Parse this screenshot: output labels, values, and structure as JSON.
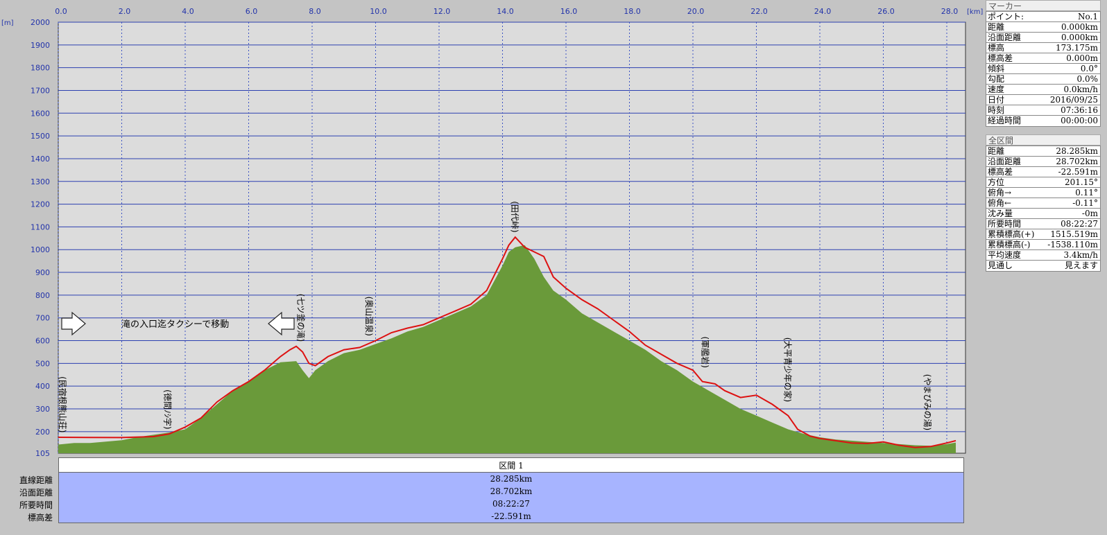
{
  "chart_data": {
    "type": "area",
    "y_unit": "[m]",
    "x_unit": "[km]",
    "xlim": [
      0,
      28.285
    ],
    "ylim": [
      105,
      2000
    ],
    "x_ticks": [
      "0.0",
      "2.0",
      "4.0",
      "6.0",
      "8.0",
      "10.0",
      "12.0",
      "14.0",
      "16.0",
      "18.0",
      "20.0",
      "22.0",
      "24.0",
      "26.0",
      "28.0"
    ],
    "y_ticks": [
      "2000",
      "1900",
      "1800",
      "1700",
      "1600",
      "1500",
      "1400",
      "1300",
      "1200",
      "1100",
      "1000",
      "900",
      "800",
      "700",
      "600",
      "500",
      "400",
      "300",
      "200",
      "105"
    ],
    "y_grid_values": [
      2000,
      1900,
      1800,
      1700,
      1600,
      1500,
      1400,
      1300,
      1200,
      1100,
      1000,
      900,
      800,
      700,
      600,
      500,
      400,
      300,
      200
    ],
    "grid": true,
    "series": [
      {
        "color": "#6a9a3a",
        "points": [
          [
            0,
            143
          ],
          [
            0.5,
            150
          ],
          [
            1,
            150
          ],
          [
            1.5,
            156
          ],
          [
            2,
            162
          ],
          [
            2.5,
            176
          ],
          [
            3,
            186
          ],
          [
            3.5,
            196
          ],
          [
            4,
            210
          ],
          [
            4.5,
            260
          ],
          [
            5,
            320
          ],
          [
            5.5,
            380
          ],
          [
            6,
            420
          ],
          [
            6.5,
            470
          ],
          [
            7,
            505
          ],
          [
            7.5,
            510
          ],
          [
            7.7,
            470
          ],
          [
            7.9,
            435
          ],
          [
            8.1,
            470
          ],
          [
            8.5,
            510
          ],
          [
            9,
            545
          ],
          [
            9.5,
            560
          ],
          [
            10,
            585
          ],
          [
            10.5,
            610
          ],
          [
            11,
            640
          ],
          [
            11.5,
            660
          ],
          [
            12,
            690
          ],
          [
            12.5,
            720
          ],
          [
            13,
            750
          ],
          [
            13.5,
            800
          ],
          [
            14,
            930
          ],
          [
            14.2,
            990
          ],
          [
            14.4,
            1010
          ],
          [
            14.7,
            1020
          ],
          [
            15,
            960
          ],
          [
            15.3,
            880
          ],
          [
            15.6,
            820
          ],
          [
            16,
            780
          ],
          [
            16.5,
            720
          ],
          [
            17,
            680
          ],
          [
            17.5,
            640
          ],
          [
            18,
            600
          ],
          [
            18.5,
            560
          ],
          [
            19,
            510
          ],
          [
            19.5,
            470
          ],
          [
            20,
            420
          ],
          [
            20.5,
            380
          ],
          [
            21,
            340
          ],
          [
            21.5,
            300
          ],
          [
            22,
            270
          ],
          [
            22.5,
            240
          ],
          [
            23,
            210
          ],
          [
            23.5,
            190
          ],
          [
            24,
            175
          ],
          [
            24.5,
            165
          ],
          [
            25,
            160
          ],
          [
            25.5,
            155
          ],
          [
            26,
            150
          ],
          [
            26.5,
            145
          ],
          [
            27,
            140
          ],
          [
            27.5,
            138
          ],
          [
            28,
            145
          ],
          [
            28.285,
            152
          ]
        ]
      },
      {
        "color": "#dd1111",
        "points": [
          [
            0,
            175
          ],
          [
            2,
            174
          ],
          [
            3,
            178
          ],
          [
            3.5,
            190
          ],
          [
            4,
            220
          ],
          [
            4.5,
            260
          ],
          [
            5,
            330
          ],
          [
            5.5,
            380
          ],
          [
            6,
            420
          ],
          [
            6.5,
            470
          ],
          [
            7,
            530
          ],
          [
            7.3,
            560
          ],
          [
            7.5,
            575
          ],
          [
            7.7,
            550
          ],
          [
            7.9,
            500
          ],
          [
            8.1,
            490
          ],
          [
            8.5,
            530
          ],
          [
            9,
            560
          ],
          [
            9.5,
            570
          ],
          [
            10,
            600
          ],
          [
            10.5,
            635
          ],
          [
            11,
            655
          ],
          [
            11.5,
            670
          ],
          [
            12,
            700
          ],
          [
            12.5,
            730
          ],
          [
            13,
            760
          ],
          [
            13.5,
            820
          ],
          [
            14,
            960
          ],
          [
            14.2,
            1020
          ],
          [
            14.4,
            1055
          ],
          [
            14.7,
            1010
          ],
          [
            15,
            990
          ],
          [
            15.3,
            970
          ],
          [
            15.6,
            880
          ],
          [
            16,
            830
          ],
          [
            16.5,
            780
          ],
          [
            17,
            740
          ],
          [
            17.5,
            690
          ],
          [
            18,
            640
          ],
          [
            18.5,
            580
          ],
          [
            19,
            540
          ],
          [
            19.5,
            500
          ],
          [
            20,
            470
          ],
          [
            20.3,
            420
          ],
          [
            20.7,
            410
          ],
          [
            21,
            380
          ],
          [
            21.5,
            350
          ],
          [
            22,
            360
          ],
          [
            22.5,
            320
          ],
          [
            23,
            270
          ],
          [
            23.3,
            210
          ],
          [
            23.7,
            180
          ],
          [
            24,
            170
          ],
          [
            24.5,
            160
          ],
          [
            25,
            150
          ],
          [
            25.5,
            148
          ],
          [
            26,
            155
          ],
          [
            26.5,
            140
          ],
          [
            27,
            130
          ],
          [
            27.5,
            135
          ],
          [
            28,
            150
          ],
          [
            28.285,
            160
          ]
        ]
      }
    ],
    "annotations": [
      {
        "x": 0.0,
        "y": 195,
        "text": "(民宿根熊山荘)"
      },
      {
        "x": 3.35,
        "y": 210,
        "text": "(徳間ﾉｼ字)"
      },
      {
        "x": 7.55,
        "y": 595,
        "text": "(七ツ釜の滝)"
      },
      {
        "x": 9.7,
        "y": 620,
        "text": "(奥山温泉)"
      },
      {
        "x": 14.3,
        "y": 1075,
        "text": "(田代峠)"
      },
      {
        "x": 20.3,
        "y": 480,
        "text": "(軍艦岩)"
      },
      {
        "x": 22.9,
        "y": 330,
        "text": "(大平青少年の家)"
      },
      {
        "x": 27.3,
        "y": 205,
        "text": "(やまびみの湯)"
      }
    ],
    "taxi_note": "滝の入口迄タクシーで移動"
  },
  "marker_panel": {
    "title": "マーカー",
    "rows": [
      {
        "k": "ポイント:",
        "v": "No.1"
      },
      {
        "k": "距離",
        "v": "0.000km"
      },
      {
        "k": "沿面距離",
        "v": "0.000km"
      },
      {
        "k": "標高",
        "v": "173.175m"
      },
      {
        "k": "標高差",
        "v": "0.000m"
      },
      {
        "k": "傾斜",
        "v": "0.0°"
      },
      {
        "k": "勾配",
        "v": "0.0%"
      },
      {
        "k": "速度",
        "v": "0.0km/h"
      },
      {
        "k": "日付",
        "v": "2016/09/25"
      },
      {
        "k": "時刻",
        "v": "07:36:16"
      },
      {
        "k": "経過時間",
        "v": "00:00:00"
      }
    ]
  },
  "section_panel": {
    "title": "全区間",
    "rows": [
      {
        "k": "距離",
        "v": "28.285km"
      },
      {
        "k": "沿面距離",
        "v": "28.702km"
      },
      {
        "k": "標高差",
        "v": "-22.591m"
      },
      {
        "k": "方位",
        "v": "201.15°"
      },
      {
        "k": "俯角→",
        "v": "0.11°"
      },
      {
        "k": "俯角←",
        "v": "-0.11°"
      },
      {
        "k": "沈み量",
        "v": "-0m"
      },
      {
        "k": "所要時間",
        "v": "08:22:27"
      },
      {
        "k": "累積標高(+)",
        "v": "1515.519m"
      },
      {
        "k": "累積標高(-)",
        "v": "-1538.110m"
      },
      {
        "k": "平均速度",
        "v": "3.4km/h"
      },
      {
        "k": "見通し",
        "v": "見えます"
      }
    ]
  },
  "summary": {
    "header": "区間 1",
    "labels": [
      "直線距離",
      "沿面距離",
      "所要時間",
      "標高差"
    ],
    "values": [
      "28.285km",
      "28.702km",
      "08:22:27",
      "-22.591m"
    ]
  }
}
